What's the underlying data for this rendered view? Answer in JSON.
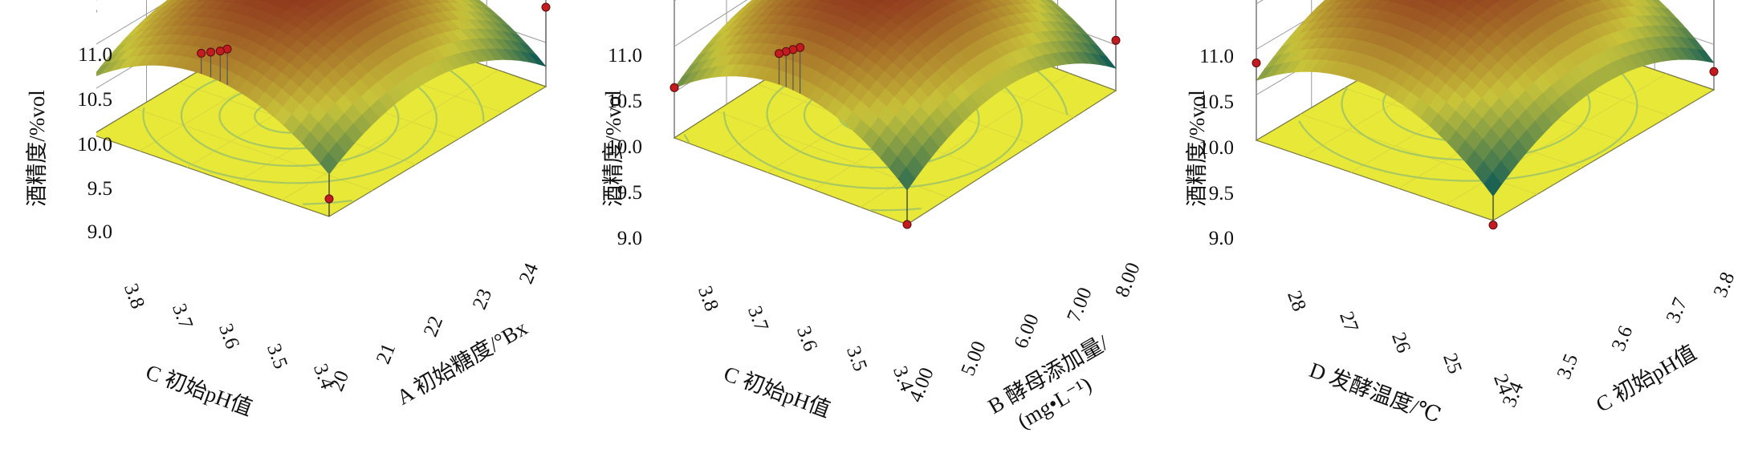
{
  "chart_data": [
    {
      "type": "surface3d",
      "zlabel": "酒精度/%vol",
      "zlim": [
        9.0,
        11.0
      ],
      "z_ticks": [
        "9.0",
        "9.5",
        "10.0",
        "10.5",
        "11.0"
      ],
      "left_axis": {
        "label": "C 初始pH值",
        "ticks": [
          "3.8",
          "3.7",
          "3.6",
          "3.5",
          "3.4"
        ],
        "range": [
          3.4,
          3.8
        ]
      },
      "right_axis": {
        "label": "A 初始糖度/°Bx",
        "ticks": [
          "20",
          "21",
          "22",
          "23",
          "24"
        ],
        "range": [
          20,
          24
        ]
      },
      "design_points_z": [
        10.5,
        10.45,
        10.4,
        10.35,
        10.4,
        9.9,
        9.2
      ]
    },
    {
      "type": "surface3d",
      "zlabel": "酒精度/%vol",
      "zlim": [
        9.0,
        11.0
      ],
      "z_ticks": [
        "9.0",
        "9.5",
        "10.0",
        "10.5",
        "11.0"
      ],
      "left_axis": {
        "label": "C 初始pH值",
        "ticks": [
          "3.8",
          "3.7",
          "3.6",
          "3.5",
          "3.4"
        ],
        "range": [
          3.4,
          3.8
        ]
      },
      "right_axis": {
        "label": "B 酵母添加量/",
        "label_line2": "(mg•L⁻¹)",
        "ticks": [
          "4.00",
          "5.00",
          "6.00",
          "7.00",
          "8.00"
        ],
        "range": [
          4.0,
          8.0
        ]
      },
      "design_points_z": [
        10.5,
        10.45,
        10.4,
        10.35,
        9.55,
        9.55,
        9.0
      ]
    },
    {
      "type": "surface3d",
      "zlabel": "酒精度/%vol",
      "zlim": [
        9.0,
        11.0
      ],
      "z_ticks": [
        "9.0",
        "9.5",
        "10.0",
        "10.5",
        "11.0"
      ],
      "left_axis": {
        "label": "D 发酵温度/℃",
        "ticks": [
          "28",
          "27",
          "26",
          "25",
          "24"
        ],
        "range": [
          24,
          28
        ]
      },
      "right_axis": {
        "label": "C 初始pH值",
        "ticks": [
          "3.4",
          "3.5",
          "3.6",
          "3.7",
          "3.8"
        ],
        "range": [
          3.4,
          3.8
        ]
      },
      "design_points_z": [
        10.6,
        10.5,
        10.45,
        10.4,
        9.85,
        9.2,
        8.95
      ]
    }
  ],
  "colors": {
    "floor": "#e8e838",
    "contour": "#a8c860",
    "inner_contour_panel3": "#ff8830",
    "point": "#c21b20",
    "surface_low": "#0e5a56",
    "surface_mid": "#c9c43a",
    "surface_high": "#8a2a1a"
  }
}
